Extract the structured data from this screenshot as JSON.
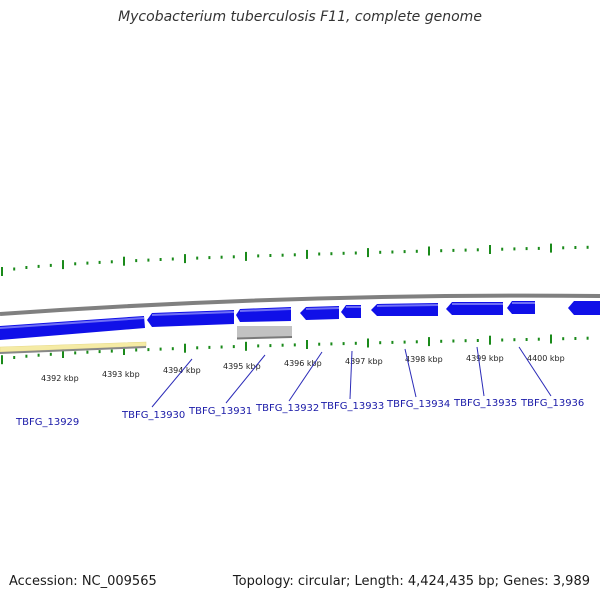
{
  "title": "Mycobacterium tuberculosis F11, complete genome",
  "footer": {
    "accession": "Accession: NC_009565",
    "info": "Topology: circular; Length: 4,424,435 bp; Genes: 3,989"
  },
  "colors": {
    "gene_fill": "#1010e8",
    "gene_highlight": "#6f6ff5",
    "backbone": "#808080",
    "tick": "#1a8a1a",
    "label": "#1a1aa8",
    "connector": "#2b2bb8",
    "pseudo_fill": "#c2c2c2",
    "highlight_fill": "#f5eba5"
  },
  "kbp_ticks": [
    {
      "label": "4392 kbp"
    },
    {
      "label": "4393 kbp"
    },
    {
      "label": "4394 kbp"
    },
    {
      "label": "4395 kbp"
    },
    {
      "label": "4396 kbp"
    },
    {
      "label": "4397 kbp"
    },
    {
      "label": "4398 kbp"
    },
    {
      "label": "4399 kbp"
    },
    {
      "label": "4400 kbp"
    }
  ],
  "gene_labels": [
    {
      "label": "TBFG_13929"
    },
    {
      "label": "TBFG_13930"
    },
    {
      "label": "TBFG_13931"
    },
    {
      "label": "TBFG_13932"
    },
    {
      "label": "TBFG_13933"
    },
    {
      "label": "TBFG_13934"
    },
    {
      "label": "TBFG_13935"
    },
    {
      "label": "TBFG_13936"
    }
  ]
}
